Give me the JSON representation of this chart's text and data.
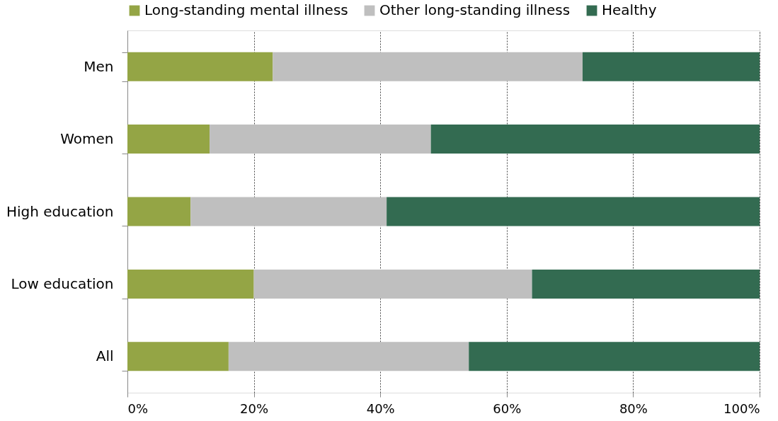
{
  "chart_data": {
    "type": "bar",
    "orientation": "horizontal",
    "stacked": true,
    "categories": [
      "Men",
      "Women",
      "High education",
      "Low education",
      "All"
    ],
    "series": [
      {
        "name": "Long-standing mental illness",
        "color": "#94a545",
        "values": [
          23,
          13,
          10,
          20,
          16
        ]
      },
      {
        "name": "Other long-standing illness",
        "color": "#bfbfbf",
        "values": [
          49,
          35,
          31,
          44,
          38
        ]
      },
      {
        "name": "Healthy",
        "color": "#336b51",
        "values": [
          28,
          52,
          59,
          36,
          46
        ]
      }
    ],
    "xlim": [
      0,
      100
    ],
    "xticks": [
      {
        "value": 0,
        "label": "0%"
      },
      {
        "value": 20,
        "label": "20%"
      },
      {
        "value": 40,
        "label": "40%"
      },
      {
        "value": 60,
        "label": "60%"
      },
      {
        "value": 80,
        "label": "80%"
      },
      {
        "value": 100,
        "label": "100%"
      }
    ],
    "grid": "x",
    "legend": "top"
  }
}
